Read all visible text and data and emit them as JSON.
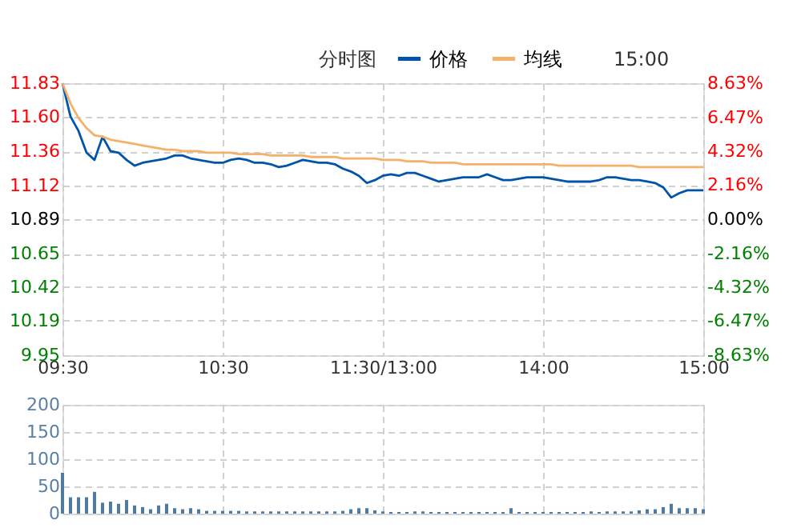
{
  "chart_data": [
    {
      "type": "line",
      "title": "分时图",
      "annotations": [
        "15:00"
      ],
      "legend": "top",
      "categories": [
        "09:30",
        null,
        null,
        null,
        null,
        null,
        null,
        null,
        null,
        null,
        null,
        null,
        null,
        null,
        null,
        null,
        null,
        null,
        null,
        null,
        "10:30",
        null,
        null,
        null,
        null,
        null,
        null,
        null,
        null,
        null,
        null,
        null,
        null,
        null,
        null,
        null,
        null,
        null,
        null,
        null,
        "11:30/13:00",
        null,
        null,
        null,
        null,
        null,
        null,
        null,
        null,
        null,
        null,
        null,
        null,
        null,
        null,
        null,
        null,
        null,
        null,
        null,
        "14:00",
        null,
        null,
        null,
        null,
        null,
        null,
        null,
        null,
        null,
        null,
        null,
        null,
        null,
        null,
        null,
        null,
        null,
        null,
        null,
        "15:00"
      ],
      "ylim": [
        9.95,
        11.83
      ],
      "yticks": [
        9.95,
        10.19,
        10.42,
        10.65,
        10.89,
        11.12,
        11.36,
        {
          "value": 11.6,
          "label": "11.60"
        },
        11.83
      ],
      "y2lim": [
        -8.63,
        8.63
      ],
      "y2ticks": [
        {
          "value": -8.63,
          "label": "-8.63%"
        },
        {
          "value": -6.47,
          "label": "-6.47%"
        },
        {
          "value": -4.32,
          "label": "-4.32%"
        },
        {
          "value": -2.16,
          "label": "-2.16%"
        },
        {
          "value": 0,
          "label": "0.00%"
        },
        {
          "value": 2.16,
          "label": "2.16%"
        },
        {
          "value": 4.32,
          "label": "4.32%"
        },
        {
          "value": 6.47,
          "label": "6.47%"
        },
        {
          "value": 8.63,
          "label": "8.63%"
        }
      ],
      "grid": true,
      "line_style": "solid",
      "series": [
        {
          "name": "价格",
          "color": "#0055aa",
          "values": [
            11.83,
            11.6,
            11.5,
            11.35,
            11.3,
            11.46,
            11.36,
            11.35,
            11.3,
            11.26,
            11.28,
            11.29,
            11.3,
            11.31,
            11.33,
            11.33,
            11.31,
            11.3,
            11.29,
            11.28,
            11.28,
            11.3,
            11.31,
            11.3,
            11.28,
            11.28,
            11.27,
            11.25,
            11.26,
            11.28,
            11.3,
            11.29,
            11.28,
            11.28,
            11.27,
            11.24,
            11.22,
            11.19,
            11.14,
            11.16,
            11.19,
            11.2,
            11.19,
            11.21,
            11.21,
            11.19,
            11.17,
            11.15,
            11.16,
            11.17,
            11.18,
            11.18,
            11.18,
            11.2,
            11.18,
            11.16,
            11.16,
            11.17,
            11.18,
            11.18,
            11.18,
            11.17,
            11.16,
            11.15,
            11.15,
            11.15,
            11.15,
            11.16,
            11.18,
            11.18,
            11.17,
            11.16,
            11.16,
            11.15,
            11.14,
            11.11,
            11.04,
            11.07,
            11.09,
            11.09,
            11.09
          ]
        },
        {
          "name": "均线",
          "color": "#f5b06a",
          "values": [
            11.83,
            11.69,
            11.59,
            11.52,
            11.47,
            11.46,
            11.44,
            11.43,
            11.42,
            11.41,
            11.4,
            11.39,
            11.38,
            11.37,
            11.37,
            11.36,
            11.36,
            11.36,
            11.35,
            11.35,
            11.35,
            11.35,
            11.34,
            11.34,
            11.34,
            11.34,
            11.33,
            11.33,
            11.33,
            11.33,
            11.33,
            11.32,
            11.32,
            11.32,
            11.32,
            11.31,
            11.31,
            11.31,
            11.31,
            11.31,
            11.3,
            11.3,
            11.3,
            11.29,
            11.29,
            11.29,
            11.28,
            11.28,
            11.28,
            11.28,
            11.27,
            11.27,
            11.27,
            11.27,
            11.27,
            11.27,
            11.27,
            11.27,
            11.27,
            11.27,
            11.27,
            11.27,
            11.26,
            11.26,
            11.26,
            11.26,
            11.26,
            11.26,
            11.26,
            11.26,
            11.26,
            11.26,
            11.25,
            11.25,
            11.25,
            11.25,
            11.25,
            11.25,
            11.25,
            11.25,
            11.25
          ]
        }
      ]
    },
    {
      "type": "bar",
      "tick_labels": "y",
      "grid": true,
      "categories": [
        null,
        null,
        null,
        null,
        null,
        null,
        null,
        null,
        null,
        null,
        null,
        null,
        null,
        null,
        null,
        null,
        null,
        null,
        null,
        null,
        null,
        null,
        null,
        null,
        null,
        null,
        null,
        null,
        null,
        null,
        null,
        null,
        null,
        null,
        null,
        null,
        null,
        null,
        null,
        null,
        null,
        null,
        null,
        null,
        null,
        null,
        null,
        null,
        null,
        null,
        null,
        null,
        null,
        null,
        null,
        null,
        null,
        null,
        null,
        null,
        null,
        null,
        null,
        null,
        null,
        null,
        null,
        null,
        null,
        null,
        null,
        null,
        null,
        null,
        null,
        null,
        null,
        null,
        null,
        null,
        null
      ],
      "ylim": [
        0,
        200
      ],
      "yticks": [
        0,
        50,
        100,
        150,
        200
      ],
      "values": [
        75,
        30,
        30,
        30,
        40,
        20,
        22,
        18,
        25,
        15,
        12,
        8,
        15,
        18,
        10,
        8,
        10,
        8,
        5,
        5,
        5,
        5,
        5,
        4,
        4,
        4,
        4,
        4,
        4,
        4,
        4,
        4,
        4,
        4,
        4,
        5,
        8,
        10,
        10,
        6,
        4,
        3,
        3,
        3,
        4,
        4,
        3,
        3,
        3,
        3,
        3,
        3,
        3,
        3,
        3,
        3,
        10,
        3,
        3,
        3,
        3,
        3,
        3,
        3,
        3,
        3,
        4,
        3,
        4,
        4,
        4,
        4,
        6,
        8,
        8,
        12,
        18,
        10,
        10,
        10,
        8
      ],
      "color": "#4f7ba0"
    }
  ]
}
